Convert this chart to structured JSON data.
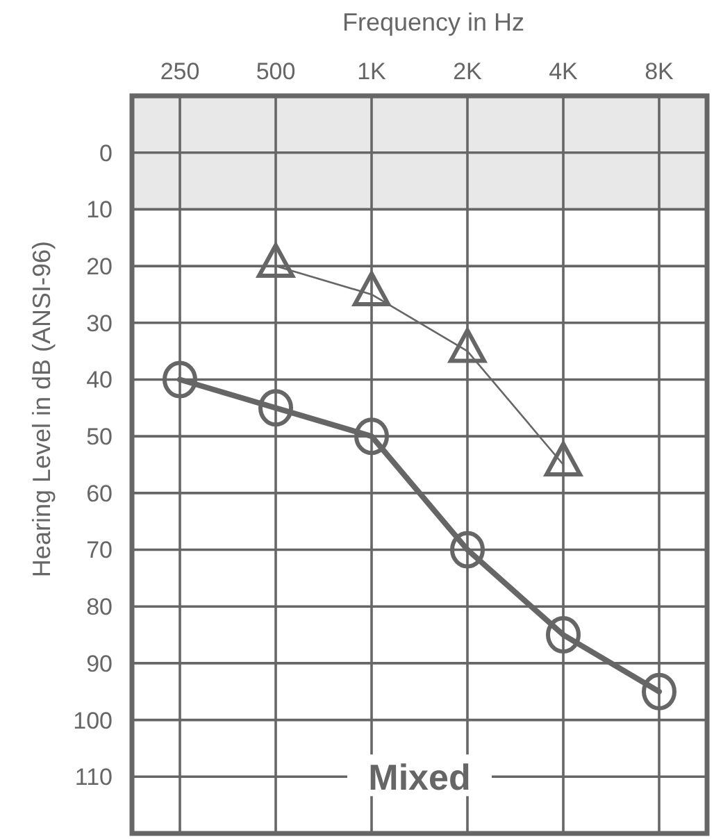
{
  "chart_data": {
    "type": "line",
    "xlabel": "Frequency in Hz",
    "ylabel": "Hearing Level in dB (ANSI-96)",
    "categories": [
      "250",
      "500",
      "1K",
      "2K",
      "4K",
      "8K"
    ],
    "series": [
      {
        "color": "#666666",
        "marker": "circle",
        "values": [
          40,
          45,
          50,
          70,
          85,
          95
        ]
      },
      {
        "color": "#666666",
        "marker": "triangle",
        "values": [
          null,
          20,
          25,
          35,
          55,
          null
        ]
      }
    ],
    "ylim": [
      120,
      -10
    ],
    "yticks": [
      0,
      10,
      20,
      30,
      40,
      50,
      60,
      70,
      80,
      90,
      100,
      110
    ],
    "grid": true,
    "line_style": "solid",
    "bands": [
      {
        "axis": "y",
        "from": -10,
        "to": 10,
        "color": "#e8e8e8"
      }
    ],
    "annotations": [
      "Mixed"
    ]
  }
}
